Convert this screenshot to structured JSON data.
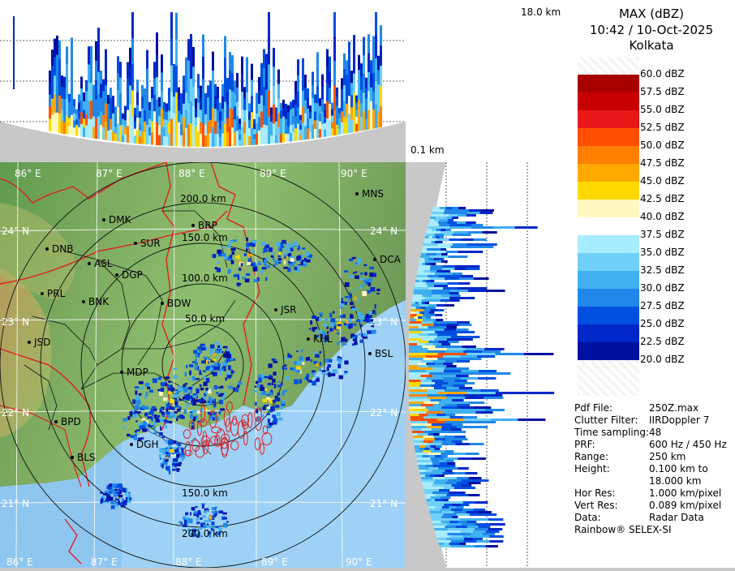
{
  "product": {
    "title": "MAX (dBZ)",
    "datetime": "10:42 / 10-Oct-2025",
    "station": "Kolkata"
  },
  "profile_labels": {
    "top_height": "18.0 km",
    "bottom_height": "0.1 km"
  },
  "legend": [
    {
      "label": "60.0 dBZ",
      "color": "#f0f0f0"
    },
    {
      "label": "57.5 dBZ",
      "color": "#a80000"
    },
    {
      "label": "55.0 dBZ",
      "color": "#c80000"
    },
    {
      "label": "52.5 dBZ",
      "color": "#e81818"
    },
    {
      "label": "50.0 dBZ",
      "color": "#ff5000"
    },
    {
      "label": "47.5 dBZ",
      "color": "#ff8000"
    },
    {
      "label": "45.0 dBZ",
      "color": "#ffa800"
    },
    {
      "label": "42.5 dBZ",
      "color": "#ffd800"
    },
    {
      "label": "40.0 dBZ",
      "color": "#fff8c0"
    },
    {
      "label": "37.5 dBZ",
      "color": "#ffffff"
    },
    {
      "label": "35.0 dBZ",
      "color": "#a8ecff"
    },
    {
      "label": "32.5 dBZ",
      "color": "#70d0f8"
    },
    {
      "label": "30.0 dBZ",
      "color": "#40b0f0"
    },
    {
      "label": "27.5 dBZ",
      "color": "#2088e8"
    },
    {
      "label": "25.0 dBZ",
      "color": "#0050e0"
    },
    {
      "label": "22.5 dBZ",
      "color": "#0028c8"
    },
    {
      "label": "20.0 dBZ",
      "color": "#0010a0"
    }
  ],
  "info": [
    {
      "key": "Pdf File:",
      "value": "250Z.max"
    },
    {
      "key": "Clutter Filter:",
      "value": "IIRDoppler 7"
    },
    {
      "key": "Time sampling:",
      "value": "48"
    },
    {
      "key": "PRF:",
      "value": "600 Hz / 450 Hz"
    },
    {
      "key": "Range:",
      "value": "250 km"
    },
    {
      "key": "Height:",
      "value": "0.100 km to"
    },
    {
      "key": "",
      "value": "18.000 km"
    },
    {
      "key": "Hor Res:",
      "value": "1.000 km/pixel"
    },
    {
      "key": "Vert Res:",
      "value": "0.089 km/pixel"
    },
    {
      "key": "Data:",
      "value": "Radar Data"
    }
  ],
  "footer": "Rainbow® SELEX-SI",
  "map": {
    "lon_labels_top": [
      "86° E",
      "87° E",
      "88° E",
      "89° E",
      "90° E"
    ],
    "lon_labels_bottom": [
      "86° E",
      "87° E",
      "88° E",
      "89° E",
      "90° E"
    ],
    "lat_labels_left": [
      "24° N",
      "23° N",
      "22° N",
      "21° N"
    ],
    "lat_labels_right": [
      "24° N",
      "23° N",
      "22° N",
      "21° N"
    ],
    "range_rings": [
      "50.0 km",
      "100.0 km",
      "150.0 km",
      "200.0 km"
    ],
    "range_rings_south": [
      "150.0 km",
      "200.0 km"
    ],
    "cities": [
      {
        "code": "MNS"
      },
      {
        "code": "DMK"
      },
      {
        "code": "BRP"
      },
      {
        "code": "SUR"
      },
      {
        "code": "DNB"
      },
      {
        "code": "ASL"
      },
      {
        "code": "DGP"
      },
      {
        "code": "DCA"
      },
      {
        "code": "PRL"
      },
      {
        "code": "BNK"
      },
      {
        "code": "BDW"
      },
      {
        "code": "JSR"
      },
      {
        "code": "KHL"
      },
      {
        "code": "JSD"
      },
      {
        "code": "BSL"
      },
      {
        "code": "MDP"
      },
      {
        "code": "BPD"
      },
      {
        "code": "DGH"
      },
      {
        "code": "BLS"
      }
    ]
  }
}
